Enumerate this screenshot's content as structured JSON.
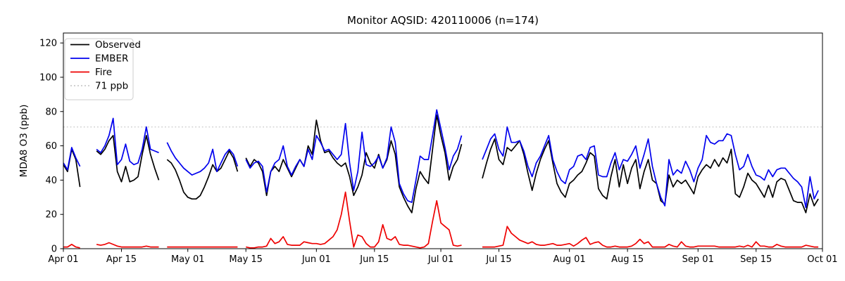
{
  "title": "Monitor AQSID: 420110006 (n=174)",
  "chart_data": {
    "type": "line",
    "title": "Monitor AQSID: 420110006 (n=174)",
    "xlabel": "",
    "ylabel": "MDA8 O3 (ppb)",
    "ylim": [
      0,
      126
    ],
    "grid": false,
    "legend_position": "upper-left",
    "y_axis": {
      "ticks": [
        0,
        20,
        40,
        60,
        80,
        100,
        120
      ]
    },
    "x_axis": {
      "start_label": "Apr 01",
      "end_label": "Oct 01",
      "total_days": 183,
      "tick_labels": [
        "Apr 01",
        "Apr 15",
        "May 01",
        "May 15",
        "Jun 01",
        "Jun 15",
        "Jul 01",
        "Jul 15",
        "Aug 01",
        "Aug 15",
        "Sep 01",
        "Sep 15",
        "Oct 01"
      ],
      "tick_day_offsets": [
        0,
        14,
        30,
        44,
        61,
        75,
        91,
        105,
        122,
        136,
        153,
        167,
        183
      ]
    },
    "threshold": {
      "label": "71 ppb",
      "value": 71,
      "color": "#c9c9c9",
      "style": "dotted"
    },
    "series": [
      {
        "name": "Observed",
        "color": "#000000",
        "values": [
          49,
          45,
          58,
          52,
          36,
          null,
          null,
          null,
          57,
          55,
          58,
          63,
          66,
          45,
          39,
          48,
          39,
          40,
          42,
          55,
          66,
          55,
          47,
          40,
          null,
          52,
          50,
          46,
          40,
          33,
          30,
          29,
          29,
          31,
          36,
          42,
          49,
          45,
          47,
          52,
          57,
          53,
          45,
          null,
          53,
          48,
          52,
          50,
          45,
          31,
          45,
          48,
          45,
          52,
          47,
          42,
          47,
          52,
          48,
          60,
          55,
          75,
          63,
          56,
          57,
          53,
          50,
          48,
          50,
          42,
          31,
          36,
          43,
          56,
          50,
          47,
          55,
          47,
          52,
          63,
          55,
          36,
          30,
          25,
          21,
          35,
          45,
          41,
          38,
          58,
          78,
          66,
          56,
          40,
          48,
          52,
          61,
          null,
          null,
          null,
          null,
          41,
          50,
          58,
          64,
          52,
          49,
          59,
          57,
          60,
          63,
          55,
          44,
          34,
          44,
          52,
          58,
          63,
          50,
          38,
          33,
          30,
          38,
          40,
          43,
          45,
          50,
          56,
          54,
          35,
          31,
          29,
          42,
          52,
          36,
          49,
          38,
          47,
          52,
          35,
          45,
          52,
          40,
          38,
          28,
          26,
          43,
          36,
          40,
          38,
          40,
          36,
          32,
          42,
          46,
          49,
          47,
          52,
          48,
          53,
          50,
          58,
          32,
          30,
          36,
          44,
          40,
          38,
          34,
          30,
          37,
          30,
          39,
          41,
          40,
          34,
          28,
          27,
          27,
          21,
          32,
          25,
          29
        ]
      },
      {
        "name": "EMBER",
        "color": "#0000ee",
        "values": [
          50,
          46,
          59,
          53,
          48,
          null,
          null,
          null,
          58,
          56,
          60,
          66,
          76,
          49,
          52,
          61,
          51,
          49,
          50,
          58,
          71,
          58,
          57,
          56,
          null,
          62,
          57,
          53,
          50,
          47,
          45,
          43,
          44,
          45,
          47,
          50,
          58,
          45,
          50,
          55,
          58,
          55,
          48,
          null,
          52,
          47,
          50,
          51,
          48,
          33,
          45,
          50,
          52,
          60,
          48,
          43,
          48,
          52,
          48,
          58,
          52,
          66,
          62,
          57,
          58,
          55,
          52,
          55,
          73,
          50,
          34,
          45,
          68,
          49,
          48,
          50,
          54,
          47,
          53,
          71,
          62,
          38,
          32,
          28,
          27,
          40,
          54,
          52,
          52,
          66,
          81,
          70,
          59,
          46,
          54,
          58,
          66,
          null,
          null,
          null,
          null,
          52,
          58,
          64,
          67,
          58,
          54,
          71,
          62,
          62,
          63,
          57,
          48,
          42,
          50,
          54,
          60,
          66,
          52,
          45,
          40,
          38,
          46,
          48,
          54,
          55,
          52,
          59,
          60,
          43,
          42,
          42,
          50,
          56,
          46,
          52,
          51,
          55,
          60,
          47,
          55,
          64,
          48,
          38,
          30,
          25,
          52,
          43,
          46,
          44,
          51,
          46,
          39,
          47,
          52,
          66,
          62,
          61,
          63,
          63,
          67,
          66,
          55,
          46,
          48,
          55,
          48,
          43,
          42,
          40,
          46,
          42,
          46,
          47,
          47,
          44,
          41,
          39,
          36,
          24,
          42,
          29,
          34
        ]
      },
      {
        "name": "Fire",
        "color": "#ee0000",
        "values": [
          1,
          1,
          2.5,
          1,
          0.5,
          null,
          null,
          null,
          2.5,
          2,
          2.5,
          3.5,
          2.5,
          1.5,
          1,
          1,
          1,
          1,
          1,
          1,
          1.5,
          1,
          1,
          1,
          null,
          1,
          1,
          1,
          1,
          1,
          1,
          1,
          1,
          1,
          1,
          1,
          1,
          1,
          1,
          1,
          1,
          1,
          1,
          null,
          1,
          0.5,
          0.5,
          1,
          1,
          1.5,
          6,
          3,
          4,
          7,
          2.5,
          2,
          2,
          2,
          4,
          3.5,
          3,
          3,
          2.5,
          3,
          5,
          7,
          11,
          20,
          33,
          16,
          1,
          8,
          7,
          3,
          1,
          1,
          4,
          14,
          6,
          5,
          7,
          2.5,
          2,
          2,
          1.5,
          1,
          0.5,
          1,
          3,
          16,
          28,
          15,
          13,
          11,
          2,
          1.5,
          2,
          null,
          null,
          null,
          null,
          1,
          1,
          1,
          1,
          1.5,
          2,
          13,
          9,
          7,
          5,
          4,
          3,
          4,
          2.5,
          2,
          2,
          2.5,
          3,
          2,
          2,
          2.5,
          3,
          1.5,
          3,
          5,
          6.5,
          2.5,
          3.5,
          4,
          2,
          1,
          1,
          1.5,
          1,
          1,
          1,
          1.5,
          3,
          5.5,
          3,
          4,
          1,
          1,
          1,
          1,
          2.5,
          1.5,
          1,
          4,
          1.5,
          1,
          1,
          1.5,
          1.5,
          1.5,
          1.5,
          1.5,
          1,
          1,
          1,
          1,
          1,
          1.5,
          1,
          2,
          1,
          4,
          1.5,
          1.5,
          1,
          1,
          2.5,
          1.5,
          1,
          1,
          1,
          1,
          1,
          2,
          1.5,
          1,
          1
        ]
      }
    ]
  }
}
